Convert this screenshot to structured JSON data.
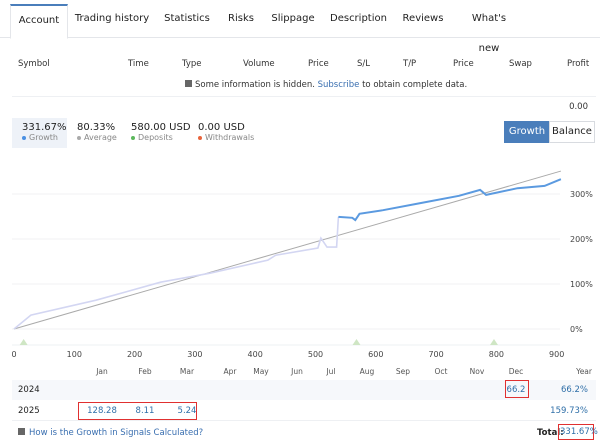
{
  "tabs": [
    "Account",
    "Trading history",
    "Statistics",
    "Risks",
    "Slippage",
    "Description",
    "Reviews",
    "What's new"
  ],
  "table_headers": [
    "Symbol",
    "Time",
    "Type",
    "Volume",
    "Price",
    "S/L",
    "T/P",
    "Price",
    "Swap",
    "Profit"
  ],
  "notice": {
    "before": "Some information is hidden.",
    "link": "Subscribe",
    "after": "to obtain complete data."
  },
  "profit_total": "0.00",
  "stats": [
    {
      "value": "331.67%",
      "label": "Growth",
      "color": "#4a90e2"
    },
    {
      "value": "80.33%",
      "label": "Average",
      "color": "#aaaaaa"
    },
    {
      "value": "580.00 USD",
      "label": "Deposits",
      "color": "#5cb85c"
    },
    {
      "value": "0.00 USD",
      "label": "Withdrawals",
      "color": "#e8643c"
    }
  ],
  "toggle": {
    "growth": "Growth",
    "balance": "Balance",
    "active": "Growth"
  },
  "chart_data": {
    "type": "line",
    "x_ticks": [
      "0",
      "100",
      "200",
      "300",
      "400",
      "500",
      "600",
      "700",
      "800",
      "900"
    ],
    "y_ticks": [
      "0%",
      "100%",
      "200%",
      "300%"
    ],
    "xlim": [
      0,
      920
    ],
    "ylim": [
      -30,
      360
    ],
    "series": [
      {
        "color": "#5b9ae0",
        "color_before_jump": "#d3d6f2",
        "points": [
          [
            0,
            0
          ],
          [
            28,
            31
          ],
          [
            136,
            64
          ],
          [
            243,
            104
          ],
          [
            325,
            124
          ],
          [
            421,
            153
          ],
          [
            434,
            164
          ],
          [
            504,
            180
          ],
          [
            509,
            202
          ],
          [
            519,
            182
          ],
          [
            535,
            182
          ],
          [
            538,
            249
          ],
          [
            561,
            247
          ],
          [
            566,
            242
          ],
          [
            573,
            256
          ],
          [
            612,
            264
          ],
          [
            675,
            280
          ],
          [
            738,
            296
          ],
          [
            773,
            309
          ],
          [
            783,
            298
          ],
          [
            835,
            313
          ],
          [
            880,
            318
          ],
          [
            907,
            333
          ]
        ]
      }
    ],
    "trend": {
      "color": "#aaaaaa",
      "points": [
        [
          0,
          0
        ],
        [
          907,
          351
        ]
      ]
    },
    "deposit_markers": [
      16,
      568,
      796
    ]
  },
  "monthly": {
    "months": [
      "Jan",
      "Feb",
      "Mar",
      "Apr",
      "May",
      "Jun",
      "Jul",
      "Aug",
      "Sep",
      "Oct",
      "Nov",
      "Dec"
    ],
    "year_header": "Year",
    "rows": [
      {
        "year": "2024",
        "values": [
          "",
          "",
          "",
          "",
          "",
          "",
          "",
          "",
          "",
          "",
          "",
          "66.2"
        ],
        "total": "66.2%"
      },
      {
        "year": "2025",
        "values": [
          "128.28",
          "8.11",
          "5.24",
          "",
          "",
          "",
          "",
          "",
          "",
          "",
          "",
          ""
        ],
        "total": "159.73%"
      }
    ]
  },
  "footer": {
    "link": "How is the Growth in Signals Calculated?",
    "total_label": "Total:",
    "total_value": "331.67%"
  }
}
